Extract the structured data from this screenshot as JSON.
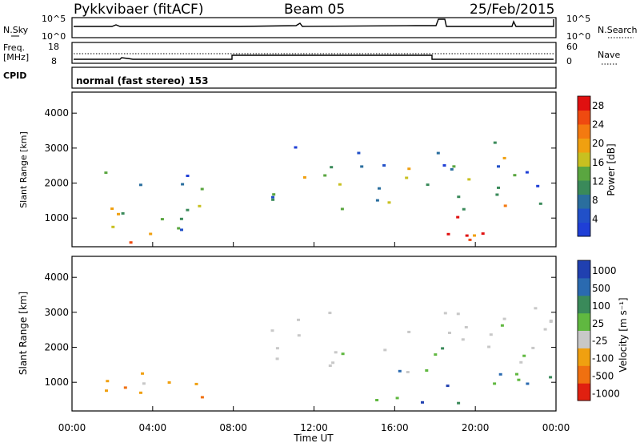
{
  "header": {
    "radar": "Pykkvibaer (fitACF)",
    "beam": "Beam 05",
    "date": "25/Feb/2015"
  },
  "sky_panel": {
    "left_label": "N.Sky",
    "right_label": "N.Search",
    "left_ticks": [
      "10^5",
      "10^0"
    ],
    "right_ticks": [
      "10^5",
      "10^0"
    ]
  },
  "freq_panel": {
    "left_label_1": "Freq.",
    "left_label_2": "[MHz]",
    "right_label": "Nave",
    "left_ticks": [
      "18",
      "8"
    ],
    "right_ticks": [
      "60",
      "0"
    ]
  },
  "cpid_panel": {
    "label": "CPID",
    "text": "normal (fast stereo) 153"
  },
  "chart_data": [
    {
      "type": "heatmap",
      "title": "",
      "xlabel": "Time UT",
      "ylabel": "Slant Range [km]",
      "x_ticks": [
        "00:00",
        "04:00",
        "08:00",
        "12:00",
        "16:00",
        "20:00",
        "00:00"
      ],
      "y_ticks": [
        "1000",
        "2000",
        "3000",
        "4000"
      ],
      "ylim": [
        180,
        4600
      ],
      "colorbar_label": "Power [dB]",
      "colorbar_ticks": [
        "4",
        "8",
        "12",
        "16",
        "20",
        "24",
        "28"
      ],
      "colorbar_colors": [
        "#1f3fd6",
        "#2150c8",
        "#2a6e9e",
        "#3a8a5a",
        "#5aa640",
        "#c8c020",
        "#f0a010",
        "#f47a10",
        "#ef4a10",
        "#e01010"
      ],
      "echo_regions": [
        {
          "t0": 0.6,
          "t1": 6.4,
          "r0": 300,
          "r1": 2600,
          "level": "mixed"
        },
        {
          "t0": 0.6,
          "t1": 4.4,
          "r0": 300,
          "r1": 700,
          "level": "strong"
        },
        {
          "t0": 9.8,
          "t1": 23.8,
          "r0": 1000,
          "r1": 3200,
          "level": "mixed"
        },
        {
          "t0": 18.0,
          "t1": 22.8,
          "r0": 400,
          "r1": 1800,
          "level": "strong"
        }
      ]
    },
    {
      "type": "heatmap",
      "title": "",
      "xlabel": "Time UT",
      "ylabel": "Slant Range [km]",
      "x_ticks": [
        "00:00",
        "04:00",
        "08:00",
        "12:00",
        "16:00",
        "20:00",
        "00:00"
      ],
      "y_ticks": [
        "1000",
        "2000",
        "3000",
        "4000"
      ],
      "ylim": [
        180,
        4600
      ],
      "colorbar_label": "Velocity [m s⁻¹]",
      "colorbar_ticks": [
        "1000",
        "500",
        "100",
        "25",
        "-25",
        "-100",
        "-500",
        "-1000"
      ],
      "colorbar_colors": [
        "#2040b0",
        "#2a6ab0",
        "#3a8a5a",
        "#60b840",
        "#c8c8c8",
        "#f0a010",
        "#f07010",
        "#e02010"
      ],
      "echo_regions": [
        {
          "t0": 0.6,
          "t1": 8.5,
          "r0": 300,
          "r1": 1300,
          "level": "negative"
        },
        {
          "t0": 9.5,
          "t1": 23.8,
          "r0": 1200,
          "r1": 3200,
          "level": "ground"
        },
        {
          "t0": 15.0,
          "t1": 23.8,
          "r0": 400,
          "r1": 1600,
          "level": "positive"
        }
      ]
    }
  ]
}
